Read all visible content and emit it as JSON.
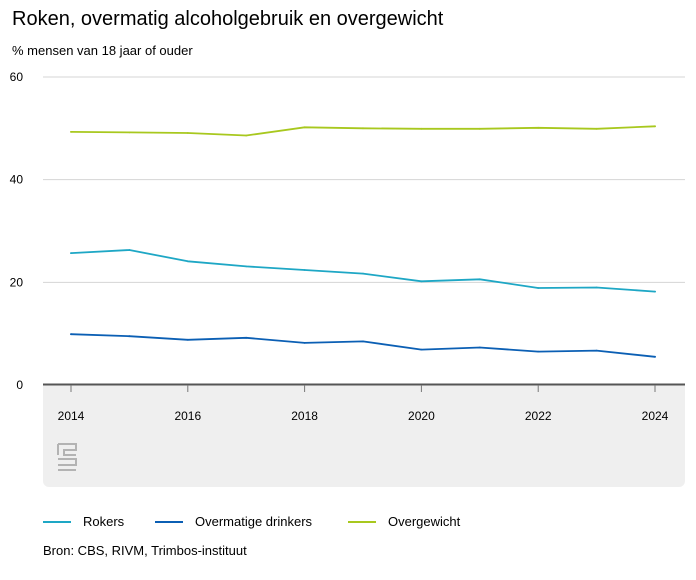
{
  "title": "Roken, overmatig alcoholgebruik en overgewicht",
  "subtitle": "% mensen van 18 jaar of ouder",
  "source": "Bron: CBS, RIVM, Trimbos-instituut",
  "logo_text": "cbs",
  "chart_data": {
    "type": "line",
    "title": "Roken, overmatig alcoholgebruik en overgewicht",
    "ylabel": "% mensen van 18 jaar of ouder",
    "xlabel": "",
    "x": [
      2014,
      2015,
      2016,
      2017,
      2018,
      2019,
      2020,
      2021,
      2022,
      2023,
      2024
    ],
    "xticks": [
      "2014",
      "2016",
      "2018",
      "2020",
      "2022",
      "2024"
    ],
    "yticks": [
      "0",
      "20",
      "40",
      "60"
    ],
    "ylim": [
      0,
      60
    ],
    "grid": true,
    "legend_position": "bottom",
    "series": [
      {
        "name": "Rokers",
        "color": "#1ea7c5",
        "values": [
          25.7,
          26.3,
          24.1,
          23.1,
          22.4,
          21.7,
          20.2,
          20.6,
          18.9,
          19.0,
          18.2
        ]
      },
      {
        "name": "Overmatige drinkers",
        "color": "#0b5fb4",
        "values": [
          9.9,
          9.5,
          8.8,
          9.2,
          8.2,
          8.5,
          6.9,
          7.3,
          6.5,
          6.7,
          5.5
        ]
      },
      {
        "name": "Overgewicht",
        "color": "#a8c81e",
        "values": [
          49.3,
          49.2,
          49.1,
          48.6,
          50.2,
          50.0,
          49.9,
          49.9,
          50.1,
          49.9,
          50.4
        ]
      }
    ]
  }
}
